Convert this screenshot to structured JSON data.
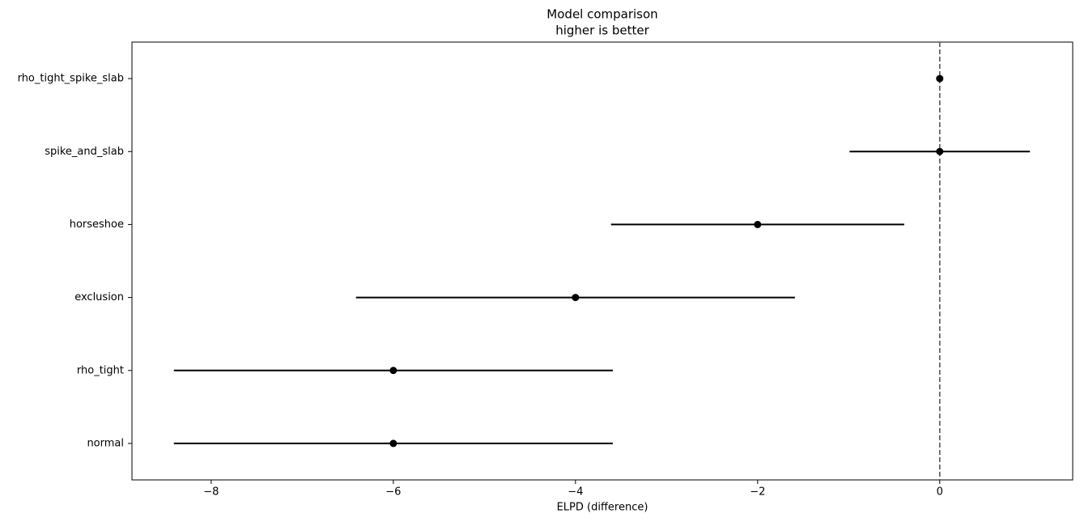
{
  "chart_data": {
    "type": "errorbar",
    "title": "Model comparison",
    "subtitle": "higher is better",
    "x_label": "ELPD (difference)",
    "categories": [
      "rho_tight_spike_slab",
      "spike_and_slab",
      "horseshoe",
      "exclusion",
      "rho_tight",
      "normal"
    ],
    "values": [
      0,
      0,
      -2,
      -4,
      -6,
      -6
    ],
    "errors": [
      0,
      0.99,
      1.61,
      2.41,
      2.41,
      2.41
    ],
    "color": "#000000",
    "xlim": [
      -8.87,
      1.46
    ],
    "xticks": [
      {
        "value": -8,
        "label": "−8"
      },
      {
        "value": -6,
        "label": "−6"
      },
      {
        "value": -4,
        "label": "−4"
      },
      {
        "value": -2,
        "label": "−2"
      },
      0
    ],
    "reference_line": 0,
    "reference_color": "#555555",
    "grid": false
  }
}
